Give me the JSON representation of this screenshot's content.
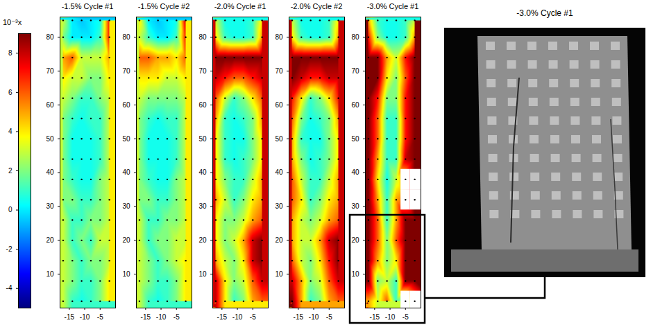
{
  "chart_data": [
    {
      "type": "heatmap",
      "title": "-1.5% Cycle #1",
      "x": [
        -17,
        -14,
        -11,
        -8,
        -5,
        -2
      ],
      "y": [
        2,
        8,
        14,
        20,
        26,
        32,
        38,
        44,
        50,
        56,
        62,
        68,
        74,
        80,
        85
      ],
      "values": [
        [
          3,
          1,
          0.5,
          1,
          2,
          4
        ],
        [
          3,
          2,
          1,
          1,
          2,
          4
        ],
        [
          3,
          2,
          1,
          2,
          2,
          3
        ],
        [
          3,
          1,
          2,
          1,
          3,
          3
        ],
        [
          3,
          1,
          1,
          2,
          2,
          3
        ],
        [
          2,
          2,
          1,
          1,
          2,
          3
        ],
        [
          2,
          1,
          0.5,
          0.5,
          2,
          3
        ],
        [
          2,
          0.5,
          0.5,
          0.5,
          1,
          3
        ],
        [
          2,
          0.5,
          0.5,
          0.5,
          1,
          3
        ],
        [
          2,
          1,
          0.5,
          1,
          1,
          3
        ],
        [
          3,
          2,
          1,
          1,
          2,
          3
        ],
        [
          4,
          3,
          3,
          2,
          2,
          4
        ],
        [
          5,
          6,
          3,
          3,
          3,
          5
        ],
        [
          2,
          0,
          0,
          0,
          1,
          7
        ],
        [
          3,
          0,
          -0.5,
          0,
          0.5,
          7
        ]
      ],
      "xlim": [
        -18,
        0
      ],
      "ylim": [
        0,
        86
      ],
      "xticks": [
        -15,
        -10,
        -5
      ],
      "yticks": [
        10,
        20,
        30,
        40,
        50,
        60,
        70,
        80
      ]
    },
    {
      "type": "heatmap",
      "title": "-1.5% Cycle #2",
      "x": [
        -17,
        -14,
        -11,
        -8,
        -5,
        -2
      ],
      "y": [
        2,
        8,
        14,
        20,
        26,
        32,
        38,
        44,
        50,
        56,
        62,
        68,
        74,
        80,
        85
      ],
      "values": [
        [
          3,
          1,
          0.5,
          1,
          2,
          4
        ],
        [
          3,
          2,
          1,
          1,
          2,
          4
        ],
        [
          3,
          2,
          1,
          2,
          3,
          4
        ],
        [
          3,
          1,
          2,
          2,
          3,
          3
        ],
        [
          3,
          1,
          1,
          2,
          2,
          3
        ],
        [
          2,
          2,
          1,
          1,
          2,
          3
        ],
        [
          2,
          1,
          0.5,
          0.5,
          2,
          3
        ],
        [
          2,
          0.5,
          0.5,
          0.5,
          1,
          3
        ],
        [
          2,
          0.5,
          0.5,
          0.5,
          1,
          3
        ],
        [
          2,
          1,
          0.5,
          1,
          1,
          3
        ],
        [
          3,
          2,
          2,
          2,
          2,
          3
        ],
        [
          4,
          4,
          4,
          3,
          3,
          4
        ],
        [
          6,
          6,
          5,
          5,
          4,
          6
        ],
        [
          3,
          1,
          0,
          0,
          1,
          7
        ],
        [
          4,
          0,
          -0.5,
          0,
          0.5,
          8
        ]
      ],
      "xlim": [
        -18,
        0
      ],
      "ylim": [
        0,
        86
      ],
      "xticks": [
        -15,
        -10,
        -5
      ],
      "yticks": [
        10,
        20,
        30,
        40,
        50,
        60,
        70,
        80
      ]
    },
    {
      "type": "heatmap",
      "title": "-2.0% Cycle #1",
      "x": [
        -17,
        -14,
        -11,
        -8,
        -5,
        -2
      ],
      "y": [
        2,
        8,
        14,
        20,
        26,
        32,
        38,
        44,
        50,
        56,
        62,
        68,
        74,
        80,
        85
      ],
      "values": [
        [
          8,
          4,
          1,
          2,
          5,
          6
        ],
        [
          8,
          4,
          2,
          3,
          6,
          8
        ],
        [
          5,
          3,
          2,
          4,
          8,
          9
        ],
        [
          4,
          2,
          3,
          5,
          8,
          9
        ],
        [
          4,
          2,
          2,
          3,
          5,
          6
        ],
        [
          5,
          3,
          1,
          2,
          4,
          5
        ],
        [
          4,
          2,
          1,
          1,
          3,
          5
        ],
        [
          4,
          1,
          0.5,
          1,
          2,
          4
        ],
        [
          4,
          1,
          0.5,
          0.5,
          2,
          4
        ],
        [
          5,
          1,
          0.5,
          1,
          2,
          5
        ],
        [
          6,
          3,
          1,
          2,
          4,
          6
        ],
        [
          8,
          7,
          6,
          6,
          7,
          8
        ],
        [
          9,
          9,
          9,
          9,
          9,
          9
        ],
        [
          4,
          1,
          0.5,
          0.5,
          1,
          5
        ],
        [
          3,
          0.5,
          0.5,
          0.5,
          1,
          4
        ]
      ],
      "xlim": [
        -18,
        0
      ],
      "ylim": [
        0,
        86
      ],
      "xticks": [
        -15,
        -10,
        -5
      ],
      "yticks": [
        10,
        20,
        30,
        40,
        50,
        60,
        70,
        80
      ]
    },
    {
      "type": "heatmap",
      "title": "-2.0% Cycle #2",
      "x": [
        -17,
        -14,
        -11,
        -8,
        -5,
        -2
      ],
      "y": [
        2,
        8,
        14,
        20,
        26,
        32,
        38,
        44,
        50,
        56,
        62,
        68,
        74,
        80,
        85
      ],
      "values": [
        [
          9,
          5,
          1,
          2,
          5,
          6
        ],
        [
          8,
          5,
          2,
          3,
          6,
          8
        ],
        [
          6,
          3,
          2,
          4,
          7,
          9
        ],
        [
          5,
          3,
          3,
          5,
          8,
          9
        ],
        [
          5,
          3,
          2,
          3,
          5,
          6
        ],
        [
          6,
          4,
          1,
          2,
          4,
          5
        ],
        [
          6,
          3,
          1,
          1,
          3,
          5
        ],
        [
          5,
          2,
          0.5,
          1,
          2,
          4
        ],
        [
          5,
          1,
          0.5,
          0.5,
          2,
          4
        ],
        [
          6,
          2,
          0.5,
          1,
          2,
          5
        ],
        [
          7,
          4,
          1,
          2,
          4,
          7
        ],
        [
          9,
          8,
          7,
          7,
          8,
          8
        ],
        [
          9,
          9,
          9,
          9,
          9,
          9
        ],
        [
          4,
          1,
          0.5,
          0.5,
          1,
          5
        ],
        [
          3,
          0.5,
          0.5,
          0.5,
          1,
          4
        ]
      ],
      "xlim": [
        -18,
        0
      ],
      "ylim": [
        0,
        86
      ],
      "xticks": [
        -15,
        -10,
        -5
      ],
      "yticks": [
        10,
        20,
        30,
        40,
        50,
        60,
        70,
        80
      ]
    },
    {
      "type": "heatmap",
      "title": "-3.0% Cycle #1",
      "x": [
        -17,
        -14,
        -11,
        -8,
        -5,
        -2
      ],
      "y": [
        2,
        8,
        14,
        20,
        26,
        32,
        38,
        44,
        50,
        56,
        62,
        68,
        74,
        80,
        85
      ],
      "values": [
        [
          5,
          3,
          6,
          1,
          null,
          null
        ],
        [
          9,
          2,
          3,
          1,
          9,
          9
        ],
        [
          9,
          5,
          2,
          4,
          9,
          9
        ],
        [
          9,
          6,
          2,
          6,
          9,
          9
        ],
        [
          9,
          6,
          1,
          5,
          9,
          9
        ],
        [
          9,
          5,
          1,
          5,
          null,
          null
        ],
        [
          9,
          4,
          0.5,
          3,
          null,
          null
        ],
        [
          9,
          5,
          1,
          1,
          8,
          9
        ],
        [
          9,
          6,
          1,
          1,
          7,
          9
        ],
        [
          9,
          6,
          1,
          1,
          7,
          9
        ],
        [
          9,
          7,
          2,
          2,
          7,
          9
        ],
        [
          9,
          9,
          4,
          2,
          6,
          9
        ],
        [
          9,
          9,
          5,
          3,
          7,
          9
        ],
        [
          7,
          2,
          0.5,
          0.5,
          1,
          5
        ],
        [
          5,
          1,
          0.5,
          0.5,
          1,
          3
        ]
      ],
      "xlim": [
        -18,
        0
      ],
      "ylim": [
        0,
        86
      ],
      "xticks": [
        -15,
        -10,
        -5
      ],
      "yticks": [
        10,
        20,
        30,
        40,
        50,
        60,
        70,
        80
      ]
    }
  ],
  "colorbar": {
    "label": "10⁻³x",
    "range": [
      -5,
      9
    ],
    "ticks": [
      -4,
      -2,
      0,
      2,
      4,
      6,
      8
    ]
  },
  "photo": {
    "title": "-3.0% Cycle #1"
  }
}
